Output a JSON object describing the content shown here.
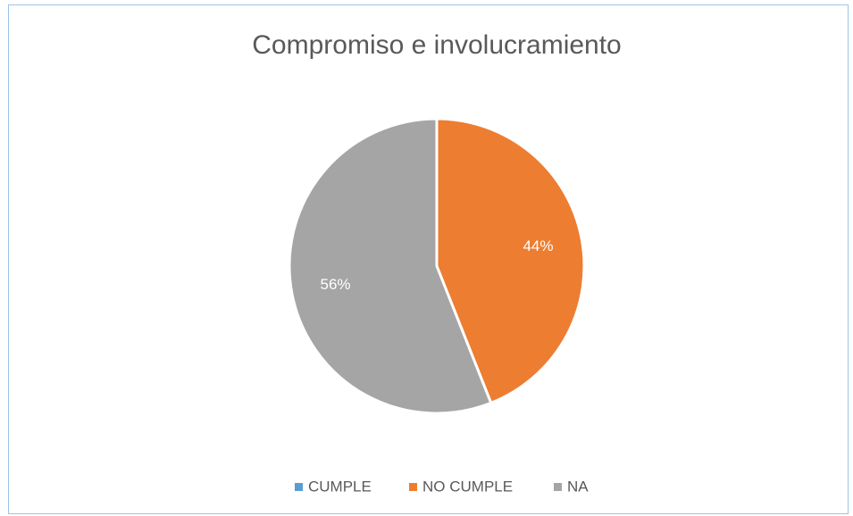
{
  "chart_data": {
    "type": "pie",
    "title": "Compromiso e involucramiento",
    "categories": [
      "CUMPLE",
      "NO CUMPLE",
      "NA"
    ],
    "values": [
      0,
      44,
      56
    ],
    "value_labels": [
      null,
      "44%",
      "56%"
    ],
    "colors": [
      "#5b9bd5",
      "#ed7d31",
      "#a5a5a5"
    ],
    "legend": "bottom"
  }
}
